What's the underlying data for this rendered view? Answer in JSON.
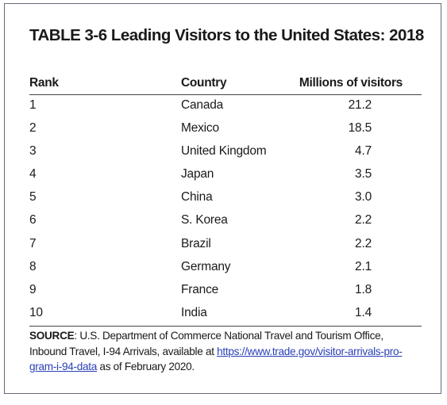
{
  "title": "TABLE 3-6 Leading Visitors to the United States: 2018",
  "headers": {
    "rank": "Rank",
    "country": "Country",
    "visitors": "Millions of visitors"
  },
  "rows": [
    {
      "rank": "1",
      "country": "Canada",
      "visitors": "21.2"
    },
    {
      "rank": "2",
      "country": "Mexico",
      "visitors": "18.5"
    },
    {
      "rank": "3",
      "country": "United Kingdom",
      "visitors": "4.7"
    },
    {
      "rank": "4",
      "country": "Japan",
      "visitors": "3.5"
    },
    {
      "rank": "5",
      "country": "China",
      "visitors": "3.0"
    },
    {
      "rank": "6",
      "country": "S. Korea",
      "visitors": "2.2"
    },
    {
      "rank": "7",
      "country": "Brazil",
      "visitors": "2.2"
    },
    {
      "rank": "8",
      "country": "Germany",
      "visitors": "2.1"
    },
    {
      "rank": "9",
      "country": "France",
      "visitors": "1.8"
    },
    {
      "rank": "10",
      "country": "India",
      "visitors": "1.4"
    }
  ],
  "source": {
    "label": "SOURCE",
    "text_before": ": U.S. Department of Commerce National Travel and Tourism Office, Inbound Travel, I-94 Arrivals, available at ",
    "link_line1": "https://www.trade.gov/visitor-arrivals-pro-",
    "link_line2": "gram-i-94-data",
    "text_after": " as of February 2020."
  },
  "colors": {
    "text": "#1a1a1a",
    "link": "#2a3fb8",
    "frame": "#6a6a7a"
  }
}
